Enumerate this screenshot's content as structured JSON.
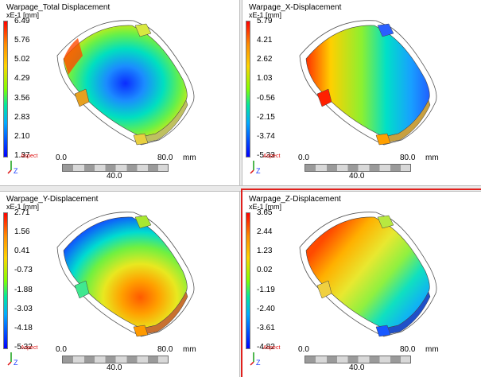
{
  "panels": [
    {
      "title": "Warpage_Total Displacement",
      "unit": "xE-1 [mm]",
      "ticks": [
        "6.49",
        "5.76",
        "5.02",
        "4.29",
        "3.56",
        "2.83",
        "2.10",
        "1.37"
      ],
      "scale": {
        "min": "0.0",
        "max": "80.0",
        "unit": "mm",
        "mid": "40.0"
      },
      "origin_label": "Aspect"
    },
    {
      "title": "Warpage_X-Displacement",
      "unit": "xE-1 [mm]",
      "ticks": [
        "5.79",
        "4.21",
        "2.62",
        "1.03",
        "-0.56",
        "-2.15",
        "-3.74",
        "-5.33"
      ],
      "scale": {
        "min": "0.0",
        "max": "80.0",
        "unit": "mm",
        "mid": "40.0"
      },
      "origin_label": "Aspect"
    },
    {
      "title": "Warpage_Y-Displacement",
      "unit": "xE-1 [mm]",
      "ticks": [
        "2.71",
        "1.56",
        "0.41",
        "-0.73",
        "-1.88",
        "-3.03",
        "-4.18",
        "-5.32"
      ],
      "scale": {
        "min": "0.0",
        "max": "80.0",
        "unit": "mm",
        "mid": "40.0"
      },
      "origin_label": "Aspect"
    },
    {
      "title": "Warpage_Z-Displacement",
      "unit": "xE-1 [mm]",
      "ticks": [
        "3.65",
        "2.44",
        "1.23",
        "0.02",
        "-1.19",
        "-2.40",
        "-3.61",
        "-4.82"
      ],
      "scale": {
        "min": "0.0",
        "max": "80.0",
        "unit": "mm",
        "mid": "40.0"
      },
      "origin_label": "Aspect"
    }
  ],
  "colors": {
    "active_border": "#e0201c",
    "divider": "#e9e9e9"
  }
}
